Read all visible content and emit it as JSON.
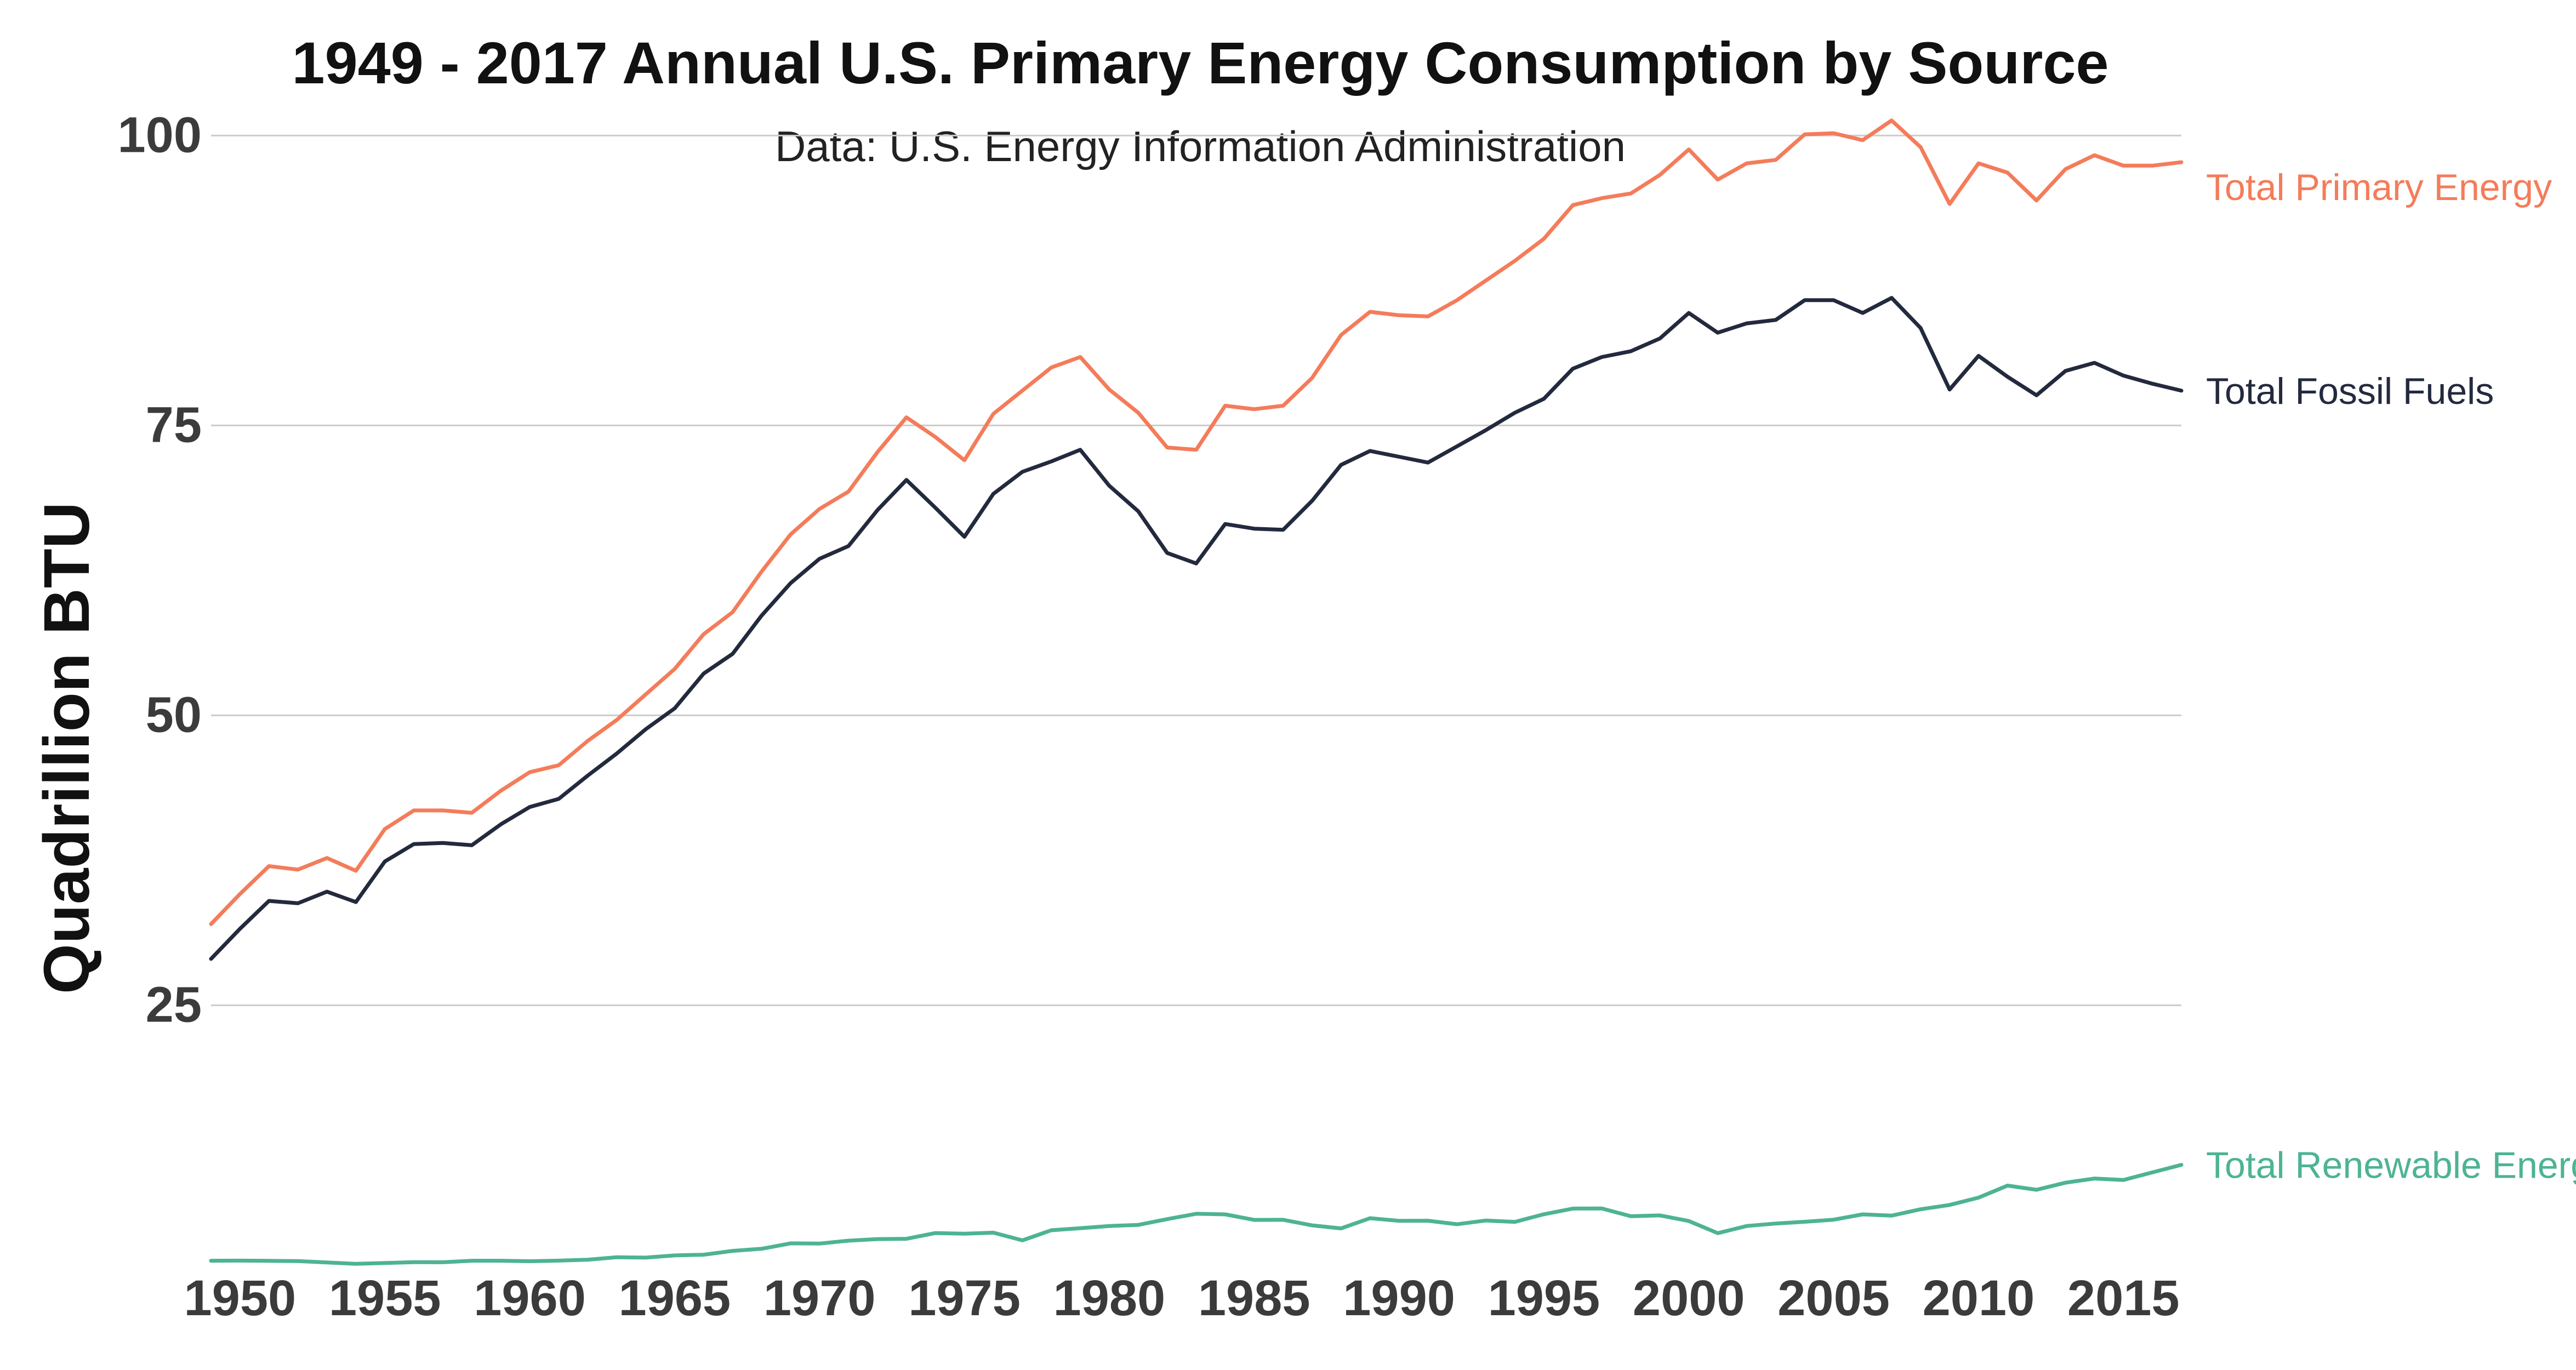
{
  "chart_data": {
    "type": "line",
    "title": "1949 - 2017 Annual U.S. Primary Energy Consumption by Source",
    "subtitle": "Data: U.S. Energy Information Administration",
    "xlabel": "",
    "ylabel": "Quadrillion BTU",
    "xlim": [
      1949,
      2017
    ],
    "ylim": [
      3,
      102
    ],
    "x_ticks": [
      1950,
      1955,
      1960,
      1965,
      1970,
      1975,
      1980,
      1985,
      1990,
      1995,
      2000,
      2005,
      2010,
      2015
    ],
    "y_ticks": [
      25,
      50,
      75,
      100
    ],
    "grid": "horizontal",
    "legend": "direct labels at right end of lines",
    "x": [
      1949,
      1950,
      1951,
      1952,
      1953,
      1954,
      1955,
      1956,
      1957,
      1958,
      1959,
      1960,
      1961,
      1962,
      1963,
      1964,
      1965,
      1966,
      1967,
      1968,
      1969,
      1970,
      1971,
      1972,
      1973,
      1974,
      1975,
      1976,
      1977,
      1978,
      1979,
      1980,
      1981,
      1982,
      1983,
      1984,
      1985,
      1986,
      1987,
      1988,
      1989,
      1990,
      1991,
      1992,
      1993,
      1994,
      1995,
      1996,
      1997,
      1998,
      1999,
      2000,
      2001,
      2002,
      2003,
      2004,
      2005,
      2006,
      2007,
      2008,
      2009,
      2010,
      2011,
      2012,
      2013,
      2014,
      2015,
      2016,
      2017
    ],
    "series": [
      {
        "name": "Total Primary Energy",
        "color": "#F47C5A",
        "values": [
          32.0,
          34.6,
          37.0,
          36.7,
          37.7,
          36.6,
          40.2,
          41.8,
          41.8,
          41.6,
          43.5,
          45.1,
          45.7,
          47.8,
          49.6,
          51.8,
          54.0,
          57.0,
          58.9,
          62.4,
          65.6,
          67.8,
          69.3,
          72.7,
          75.7,
          74.0,
          72.0,
          76.0,
          78.0,
          80.0,
          80.9,
          78.1,
          76.1,
          73.1,
          72.9,
          76.7,
          76.4,
          76.7,
          79.1,
          82.8,
          84.8,
          84.5,
          84.4,
          85.8,
          87.5,
          89.2,
          91.1,
          94.0,
          94.6,
          95.0,
          96.6,
          98.8,
          96.2,
          97.6,
          97.9,
          100.1,
          100.2,
          99.6,
          101.3,
          99.0,
          94.1,
          97.6,
          96.8,
          94.4,
          97.1,
          98.3,
          97.4,
          97.4,
          97.7
        ]
      },
      {
        "name": "Total Fossil Fuels",
        "color": "#232A3E",
        "values": [
          29.0,
          31.6,
          34.0,
          33.8,
          34.8,
          33.9,
          37.4,
          38.9,
          39.0,
          38.8,
          40.6,
          42.1,
          42.8,
          44.8,
          46.7,
          48.8,
          50.6,
          53.6,
          55.3,
          58.6,
          61.4,
          63.5,
          64.6,
          67.7,
          70.3,
          67.9,
          65.4,
          69.1,
          71.0,
          71.9,
          72.9,
          69.8,
          67.6,
          64.0,
          63.1,
          66.5,
          66.1,
          66.0,
          68.5,
          71.6,
          72.8,
          72.3,
          71.8,
          73.2,
          74.6,
          76.1,
          77.3,
          79.9,
          80.9,
          81.4,
          82.5,
          84.7,
          83.0,
          83.8,
          84.1,
          85.8,
          85.8,
          84.7,
          86.0,
          83.4,
          78.1,
          81.0,
          79.2,
          77.6,
          79.7,
          80.4,
          79.3,
          78.6,
          78.0
        ]
      },
      {
        "name": "Total Renewable Energy",
        "color": "#4DB394",
        "values": [
          2.97,
          2.98,
          2.96,
          2.94,
          2.82,
          2.7,
          2.78,
          2.85,
          2.84,
          2.97,
          2.97,
          2.93,
          2.98,
          3.06,
          3.27,
          3.24,
          3.43,
          3.49,
          3.82,
          4.0,
          4.47,
          4.45,
          4.7,
          4.84,
          4.86,
          5.36,
          5.3,
          5.39,
          4.73,
          5.6,
          5.78,
          5.97,
          6.06,
          6.56,
          7.02,
          6.97,
          6.49,
          6.5,
          6.02,
          5.76,
          6.64,
          6.41,
          6.42,
          6.12,
          6.44,
          6.32,
          6.98,
          7.47,
          7.48,
          6.81,
          6.88,
          6.4,
          5.35,
          5.97,
          6.18,
          6.33,
          6.51,
          6.97,
          6.86,
          7.41,
          7.78,
          8.41,
          9.45,
          9.09,
          9.7,
          10.06,
          9.93,
          10.59,
          11.24
        ]
      }
    ]
  }
}
